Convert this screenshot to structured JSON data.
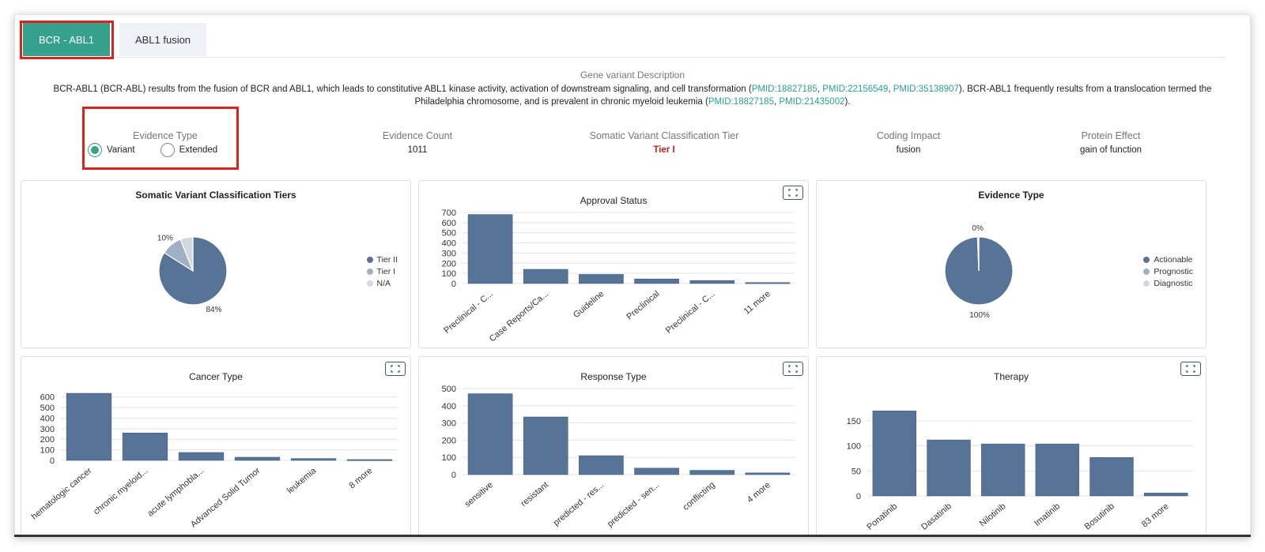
{
  "tabs": [
    {
      "label": "BCR - ABL1",
      "active": true
    },
    {
      "label": "ABL1 fusion",
      "active": false
    }
  ],
  "description": {
    "title": "Gene variant Description",
    "parts": [
      {
        "text": "BCR-ABL1 (BCR-ABL) results from the fusion of BCR and ABL1, which leads to constitutive ABL1 kinase activity, activation of downstream signaling, and cell transformation (",
        "link": false
      },
      {
        "text": "PMID:18827185",
        "link": true
      },
      {
        "text": ", ",
        "link": false
      },
      {
        "text": "PMID:22156549",
        "link": true
      },
      {
        "text": ", ",
        "link": false
      },
      {
        "text": "PMID:35138907",
        "link": true
      },
      {
        "text": "). BCR-ABL1 frequently results from a translocation termed the Philadelphia chromosome, and is prevalent in chronic myeloid leukemia (",
        "link": false
      },
      {
        "text": "PMID:18827185",
        "link": true
      },
      {
        "text": ", ",
        "link": false
      },
      {
        "text": "PMID:21435002",
        "link": true
      },
      {
        "text": ").",
        "link": false
      }
    ]
  },
  "summary": {
    "evidence_type": {
      "label": "Evidence Type",
      "options": [
        "Variant",
        "Extended"
      ],
      "selected": "Variant"
    },
    "evidence_count": {
      "label": "Evidence Count",
      "value": "1011"
    },
    "tier": {
      "label": "Somatic Variant Classification Tier",
      "value": "Tier I"
    },
    "coding_impact": {
      "label": "Coding Impact",
      "value": "fusion"
    },
    "protein_effect": {
      "label": "Protein Effect",
      "value": "gain of function"
    }
  },
  "colors": {
    "accent": "#36a18c",
    "bar": "#577396",
    "tier_red": "#c31c1c",
    "highlight": "#d9241c"
  },
  "chart_data": [
    {
      "id": "tiers",
      "type": "pie",
      "title": "Somatic Variant Classification Tiers",
      "categories": [
        "Tier II",
        "Tier I",
        "N/A"
      ],
      "values": [
        84,
        10,
        6
      ],
      "slice_labels": [
        "84%",
        "10%",
        ""
      ],
      "colors": [
        "#577396",
        "#9fb0c6",
        "#d3d8e0"
      ],
      "legend": "right"
    },
    {
      "id": "approval",
      "type": "bar",
      "title": "Approval Status",
      "categories": [
        "Preclinical - C...",
        "Case Reports/Ca...",
        "Guideline",
        "Preclinical",
        "Preclinical - C...",
        "11 more"
      ],
      "values": [
        680,
        140,
        90,
        45,
        30,
        10
      ],
      "yticks": [
        0,
        100,
        200,
        300,
        400,
        500,
        600,
        700
      ],
      "ylim": [
        0,
        700
      ],
      "grid": true
    },
    {
      "id": "evidence_type",
      "type": "pie",
      "title": "Evidence Type",
      "categories": [
        "Actionable",
        "Prognostic",
        "Diagnostic"
      ],
      "values": [
        100,
        0.4,
        0.2
      ],
      "slice_labels": [
        "100%",
        "0%",
        ""
      ],
      "colors": [
        "#577396",
        "#9fb0c6",
        "#d3d8e0"
      ],
      "legend": "right"
    },
    {
      "id": "cancer",
      "type": "bar",
      "title": "Cancer Type",
      "categories": [
        "hematologic cancer",
        "chronic myeloid...",
        "acute lymphobla...",
        "Advanced Solid Tumor",
        "leukemia",
        "8 more"
      ],
      "values": [
        635,
        260,
        75,
        30,
        18,
        8
      ],
      "yticks": [
        0,
        100,
        200,
        300,
        400,
        500,
        600
      ],
      "ylim": [
        0,
        650
      ],
      "grid": true
    },
    {
      "id": "response",
      "type": "bar",
      "title": "Response Type",
      "categories": [
        "sensitive",
        "resistant",
        "predicted - res...",
        "predicted - sen...",
        "conflicting",
        "4 more"
      ],
      "values": [
        470,
        335,
        110,
        38,
        25,
        10
      ],
      "yticks": [
        0,
        100,
        200,
        300,
        400,
        500
      ],
      "ylim": [
        0,
        500
      ],
      "grid": true
    },
    {
      "id": "therapy",
      "type": "bar",
      "title": "Therapy",
      "categories": [
        "Ponatinib",
        "Dasatinib",
        "Nilotinib",
        "Imatinib",
        "Bosutinib",
        "83 more"
      ],
      "values": [
        170,
        112,
        104,
        104,
        77,
        6
      ],
      "yticks": [
        0,
        50,
        100,
        150
      ],
      "ylim": [
        0,
        180
      ],
      "grid": true
    }
  ]
}
